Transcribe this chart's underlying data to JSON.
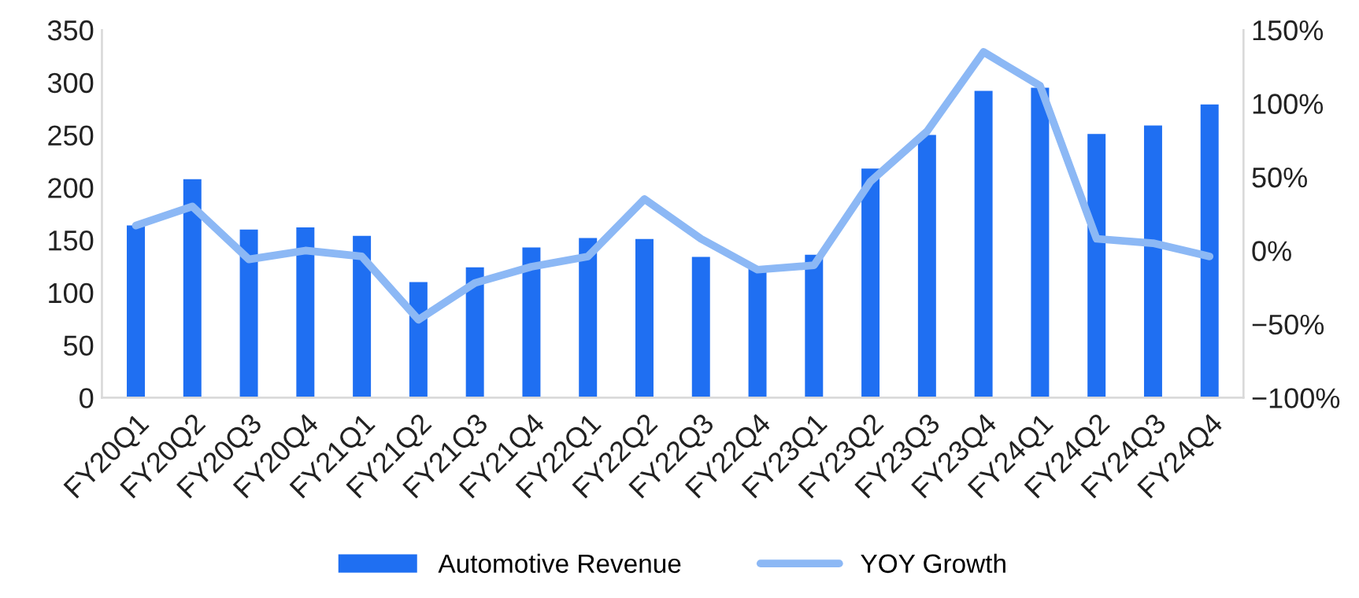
{
  "chart_data": {
    "type": "bar",
    "categories": [
      "FY20Q1",
      "FY20Q2",
      "FY20Q3",
      "FY20Q4",
      "FY21Q1",
      "FY21Q2",
      "FY21Q3",
      "FY21Q4",
      "FY22Q1",
      "FY22Q2",
      "FY22Q3",
      "FY22Q4",
      "FY23Q1",
      "FY23Q2",
      "FY23Q3",
      "FY23Q4",
      "FY24Q1",
      "FY24Q2",
      "FY24Q3",
      "FY24Q4"
    ],
    "series": [
      {
        "name": "Automotive Revenue",
        "color": "#1f6ff2",
        "values": [
          164,
          208,
          160,
          162,
          154,
          110,
          124,
          143,
          152,
          151,
          134,
          123,
          136,
          218,
          250,
          292,
          295,
          251,
          259,
          279
        ]
      },
      {
        "name": "YOY Growth",
        "type": "line",
        "axis": "y2",
        "color": "#8cb8f5",
        "values": [
          17,
          30,
          -6,
          0,
          -4,
          -47,
          -22,
          -11,
          -4,
          35,
          8,
          -13,
          -10,
          47,
          81,
          135,
          112,
          8,
          5,
          -4
        ]
      }
    ],
    "ylim": [
      0,
      350
    ],
    "yticks": [
      0,
      50,
      100,
      150,
      200,
      250,
      300,
      350
    ],
    "y2lim": [
      -100,
      150
    ],
    "y2ticks": [
      {
        "value": -100,
        "label": "−100%"
      },
      {
        "value": -50,
        "label": "−50%"
      },
      {
        "value": 0,
        "label": "0%"
      },
      {
        "value": 50,
        "label": "50%"
      },
      {
        "value": 100,
        "label": "100%"
      },
      {
        "value": 150,
        "label": "150%"
      }
    ],
    "grid": false,
    "legend": "bottom",
    "marker": "none",
    "line_style": "solid"
  }
}
